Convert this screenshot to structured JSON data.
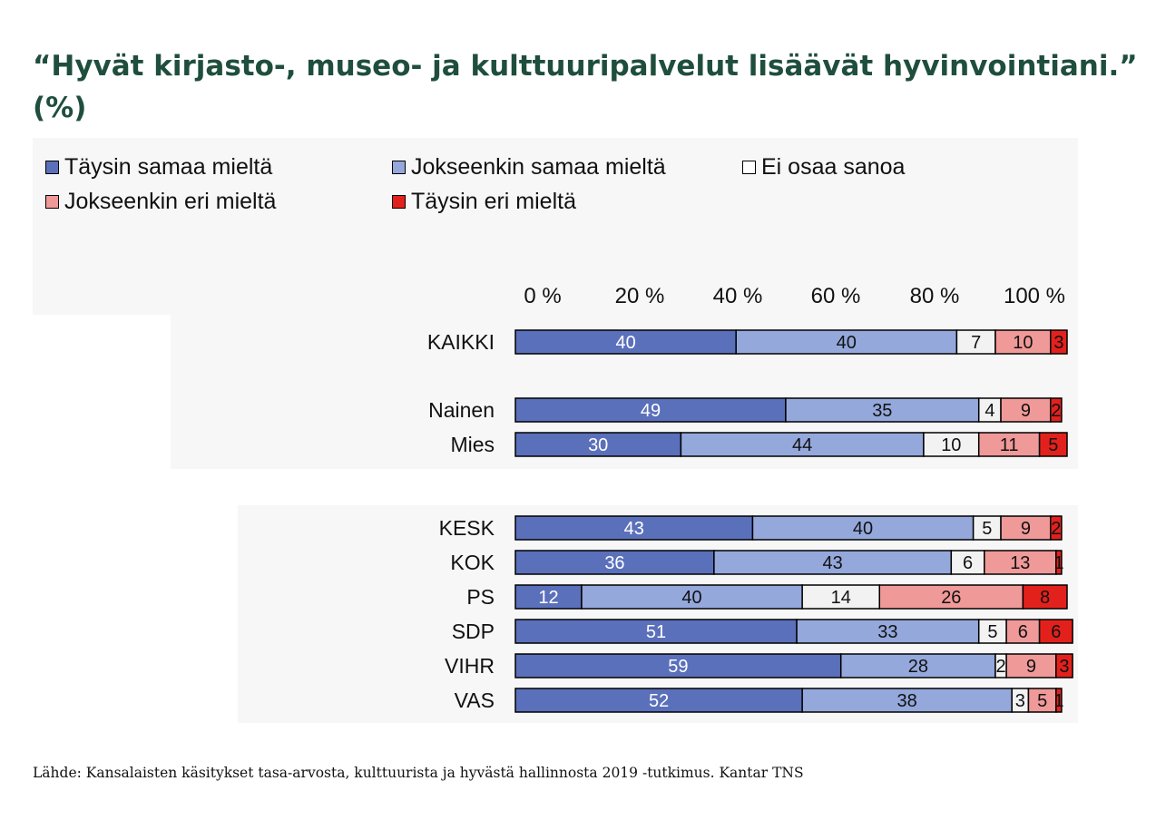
{
  "title": "“Hyvät kirjasto-, museo- ja kulttuuripalvelut lisäävät hyvinvointiani.” (%)",
  "source": "Lähde: Kansalaisten käsitykset tasa-arvosta, kulttuurista ja hyvästä hallinnosta 2019 -tutkimus. Kantar TNS",
  "colors": [
    "#5b70bb",
    "#94a8dc",
    "#f2f2f2",
    "#f09999",
    "#e3211c"
  ],
  "chart_data": {
    "type": "bar",
    "orientation": "horizontal",
    "stacked": true,
    "xlim": [
      0,
      100
    ],
    "tick_labels": [
      "0 %",
      "20 %",
      "40 %",
      "60 %",
      "80 %",
      "100 %"
    ],
    "legend_position": "top",
    "categories": [
      "KAIKKI",
      "Nainen",
      "Mies",
      "KESK",
      "KOK",
      "PS",
      "SDP",
      "VIHR",
      "VAS"
    ],
    "series": [
      {
        "name": "Täysin samaa mieltä",
        "values": [
          40,
          49,
          30,
          43,
          36,
          12,
          51,
          59,
          52
        ]
      },
      {
        "name": "Jokseenkin samaa mieltä",
        "values": [
          40,
          35,
          44,
          40,
          43,
          40,
          33,
          28,
          38
        ]
      },
      {
        "name": "Ei osaa sanoa",
        "values": [
          7,
          4,
          10,
          5,
          6,
          14,
          5,
          2,
          3
        ]
      },
      {
        "name": "Jokseenkin eri mieltä",
        "values": [
          10,
          9,
          11,
          9,
          13,
          26,
          6,
          9,
          5
        ]
      },
      {
        "name": "Täysin eri mieltä",
        "values": [
          3,
          2,
          5,
          2,
          1,
          8,
          6,
          3,
          1
        ]
      }
    ]
  }
}
